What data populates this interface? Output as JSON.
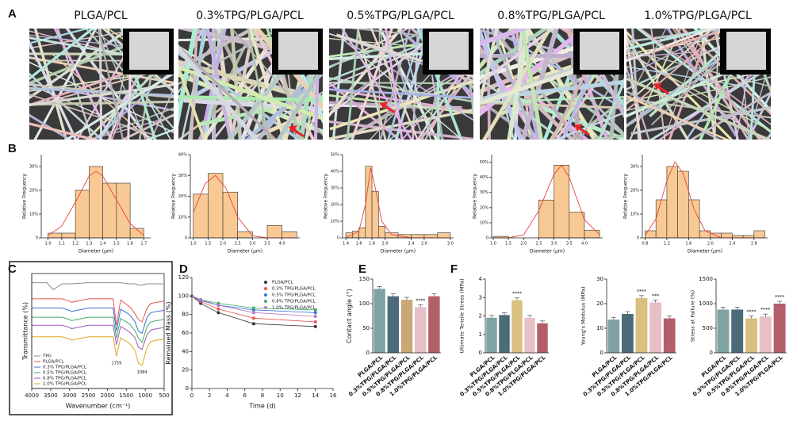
{
  "panel_labels": [
    "A",
    "B",
    "C",
    "D",
    "E",
    "F"
  ],
  "sem_titles": [
    "PLGA/PCL",
    "0.3%TPG/PLGA/PCL",
    "0.5%TPG/PLGA/PCL",
    "0.8%TPG/PLGA/PCL",
    "1.0%TPG/PLGA/PCL"
  ],
  "chart_data": [
    {
      "type": "histogram",
      "xlabel": "Diameter (μm)",
      "ylabel": "Relative Frequency",
      "color": "#f8c993",
      "bins": [
        1.0,
        1.1,
        1.2,
        1.3,
        1.4,
        1.5,
        1.6,
        1.7
      ],
      "counts": [
        2,
        2,
        20,
        30,
        23,
        23,
        4
      ],
      "xlim": [
        0.95,
        1.75
      ],
      "ylim": [
        0,
        35
      ],
      "xticks": [
        {
          "value": 1,
          "label": "1.0"
        },
        1.1,
        1.2,
        1.3,
        1.4,
        1.5,
        1.6,
        1.7
      ],
      "yticks": [
        0,
        {
          "value": 10,
          "label": "10%"
        },
        {
          "value": 20,
          "label": "20%"
        },
        {
          "value": 30,
          "label": "30%"
        }
      ],
      "fit": {
        "x": [
          1.0,
          1.1,
          1.2,
          1.3,
          1.35,
          1.4,
          1.5,
          1.6,
          1.7
        ],
        "values": [
          1,
          5,
          15,
          26,
          28,
          26,
          16,
          6,
          1
        ]
      }
    },
    {
      "type": "histogram",
      "xlabel": "Diameter (μm)",
      "ylabel": "Relative Frequency",
      "color": "#f8c993",
      "bins": [
        1.0,
        1.5,
        2.0,
        2.5,
        3.0,
        3.5,
        4.0,
        4.5
      ],
      "counts": [
        21,
        31,
        22,
        3,
        0,
        6,
        3
      ],
      "xlim": [
        0.9,
        4.6
      ],
      "ylim": [
        0,
        40
      ],
      "xticks": [
        {
          "value": 1,
          "label": "1.0"
        },
        1.5,
        {
          "value": 2,
          "label": "2.0"
        },
        2.5,
        {
          "value": 3,
          "label": "3.0"
        },
        3.5,
        {
          "value": 4,
          "label": "4.0"
        }
      ],
      "yticks": [
        0,
        {
          "value": 10,
          "label": "10%"
        },
        {
          "value": 20,
          "label": "20%"
        },
        {
          "value": 30,
          "label": "30%"
        },
        {
          "value": 40,
          "label": "40%"
        }
      ],
      "fit": {
        "x": [
          1.0,
          1.4,
          1.75,
          2.1,
          2.5,
          3.0,
          3.5,
          4.5
        ],
        "values": [
          12,
          26,
          30,
          24,
          10,
          1,
          0,
          0
        ]
      }
    },
    {
      "type": "histogram",
      "xlabel": "Diameter (μm)",
      "ylabel": "Relative Frequency",
      "color": "#f8c993",
      "bins": [
        1.4,
        1.5,
        1.6,
        1.7,
        1.8,
        1.9,
        2.0,
        2.2,
        2.4,
        2.6,
        2.8,
        3.0
      ],
      "counts": [
        3,
        4,
        6,
        43,
        28,
        7,
        3,
        2,
        2,
        2,
        3
      ],
      "xlim": [
        1.35,
        3.05
      ],
      "ylim": [
        0,
        50
      ],
      "xticks": [
        1.4,
        1.6,
        1.8,
        {
          "value": 2,
          "label": "2.0"
        },
        2.4,
        2.6,
        {
          "value": 3,
          "label": "3.0"
        }
      ],
      "yticks": [
        0,
        {
          "value": 10,
          "label": "10%"
        },
        {
          "value": 20,
          "label": "20%"
        },
        {
          "value": 30,
          "label": "30%"
        },
        {
          "value": 40,
          "label": "40%"
        },
        {
          "value": 50,
          "label": "50%"
        }
      ],
      "fit": {
        "x": [
          1.4,
          1.6,
          1.7,
          1.78,
          1.85,
          1.95,
          2.1,
          2.4,
          3.0
        ],
        "values": [
          0,
          4,
          20,
          42,
          30,
          10,
          2,
          0,
          0
        ]
      }
    },
    {
      "type": "histogram",
      "xlabel": "Diameter (μm)",
      "ylabel": "Relative Frequency",
      "color": "#f8c993",
      "bins": [
        1.0,
        1.5,
        2.0,
        2.5,
        3.0,
        3.5,
        4.0,
        4.5
      ],
      "counts": [
        1,
        0,
        0,
        25,
        48,
        17,
        5
      ],
      "xlim": [
        0.95,
        4.6
      ],
      "ylim": [
        0,
        55
      ],
      "xticks": [
        {
          "value": 1,
          "label": "1.0"
        },
        1.5,
        {
          "value": 2,
          "label": "2.0"
        },
        2.5,
        {
          "value": 3,
          "label": "3.0"
        },
        3.5,
        {
          "value": 4,
          "label": "4.0"
        }
      ],
      "yticks": [
        0,
        {
          "value": 10,
          "label": "10%"
        },
        {
          "value": 20,
          "label": "20%"
        },
        {
          "value": 30,
          "label": "30%"
        },
        {
          "value": 40,
          "label": "40%"
        },
        {
          "value": 50,
          "label": "50%"
        }
      ],
      "fit": {
        "x": [
          1.5,
          2.0,
          2.5,
          3.0,
          3.25,
          3.5,
          4.0,
          4.5
        ],
        "values": [
          0,
          2,
          18,
          42,
          48,
          40,
          12,
          2
        ]
      }
    },
    {
      "type": "histogram",
      "xlabel": "Diameter (μm)",
      "ylabel": "Relative Frequency",
      "color": "#f8c993",
      "bins": [
        0.8,
        1.0,
        1.2,
        1.4,
        1.6,
        1.8,
        2.0,
        2.2,
        2.4,
        2.6,
        2.8,
        3.0
      ],
      "counts": [
        3,
        16,
        30,
        28,
        16,
        3,
        2,
        2,
        1,
        1,
        3
      ],
      "xlim": [
        0.75,
        3.05
      ],
      "ylim": [
        0,
        35
      ],
      "xticks": [
        0.8,
        1.2,
        1.6,
        {
          "value": 2,
          "label": "2.0"
        },
        2.4,
        2.8
      ],
      "yticks": [
        0,
        {
          "value": 10,
          "label": "10%"
        },
        {
          "value": 20,
          "label": "20%"
        },
        {
          "value": 30,
          "label": "30%"
        }
      ],
      "fit": {
        "x": [
          0.8,
          1.0,
          1.2,
          1.35,
          1.5,
          1.7,
          1.9,
          2.2,
          3.0
        ],
        "values": [
          1,
          8,
          24,
          32,
          27,
          12,
          3,
          0,
          0
        ]
      }
    },
    {
      "type": "line",
      "xlabel": "Wavenumber (cm⁻¹)",
      "ylabel": "Transmittance (%)",
      "legend": "lower left",
      "markers": false,
      "x": [
        4000,
        3600,
        3433,
        3200,
        3000,
        2950,
        2500,
        2000,
        1850,
        1759,
        1650,
        1450,
        1380,
        1270,
        1182,
        1084,
        950,
        850,
        700,
        500
      ],
      "xlim": [
        4000,
        500
      ],
      "ylim": [
        0,
        100
      ],
      "xticks": [
        4000,
        3500,
        3000,
        2500,
        2000,
        1500,
        1000,
        500
      ],
      "annotations": [
        {
          "text": "1759",
          "x": 1759,
          "y": 22
        },
        {
          "text": "1084",
          "x": 1084,
          "y": 14
        }
      ],
      "series": [
        {
          "name": "TPG",
          "color": "#8c8c8c",
          "values": [
            92,
            92,
            86,
            91,
            91,
            91,
            92,
            92,
            92,
            92,
            92,
            91,
            91,
            91,
            90,
            90,
            91,
            91,
            91,
            91
          ]
        },
        {
          "name": "PLGA/PCL",
          "color": "#e8554e",
          "values": [
            78,
            78,
            78,
            78,
            76,
            75,
            78,
            78,
            78,
            55,
            77,
            72,
            70,
            65,
            60,
            58,
            70,
            74,
            75,
            76
          ]
        },
        {
          "name": "0.3% TPG/PLGA/PCL",
          "color": "#3d6fd6",
          "values": [
            70,
            70,
            70,
            70,
            68,
            67,
            70,
            70,
            70,
            50,
            69,
            65,
            63,
            58,
            50,
            48,
            62,
            66,
            67,
            68
          ]
        },
        {
          "name": "0.5% TPG/PLGA/PCL",
          "color": "#3fae67",
          "values": [
            62,
            62,
            62,
            62,
            60,
            59,
            62,
            62,
            62,
            44,
            61,
            57,
            55,
            50,
            44,
            40,
            54,
            58,
            59,
            60
          ]
        },
        {
          "name": "0.8% TPG/PLGA/PCL",
          "color": "#9b59b6",
          "values": [
            55,
            55,
            55,
            55,
            53,
            52,
            55,
            55,
            55,
            38,
            54,
            50,
            48,
            44,
            36,
            34,
            47,
            51,
            52,
            53
          ]
        },
        {
          "name": "1.0% TPG/PLGA/PCL",
          "color": "#e0a526",
          "values": [
            45,
            45,
            45,
            45,
            43,
            42,
            45,
            45,
            45,
            28,
            44,
            40,
            38,
            33,
            22,
            20,
            36,
            41,
            42,
            43
          ]
        }
      ]
    },
    {
      "type": "line",
      "xlabel": "Time (d)",
      "ylabel": "Remained Mass (%)",
      "legend": "upper right",
      "markers": true,
      "x": [
        0,
        1,
        3,
        7,
        14
      ],
      "xlim": [
        0,
        16
      ],
      "ylim": [
        0,
        120
      ],
      "xticks": [
        0,
        2,
        4,
        6,
        8,
        10,
        12,
        14,
        16
      ],
      "yticks": [
        0,
        20,
        40,
        60,
        80,
        100,
        120
      ],
      "series": [
        {
          "name": "PLGA/PCL",
          "color": "#333333",
          "values": [
            100,
            92,
            82,
            70,
            67
          ]
        },
        {
          "name": "0.3% TPG/PLGA/PCL",
          "color": "#e8554e",
          "values": [
            100,
            94,
            86,
            76,
            72
          ]
        },
        {
          "name": "0.5% TPG/PLGA/PCL",
          "color": "#3d6fd6",
          "values": [
            100,
            95,
            90,
            85,
            82
          ]
        },
        {
          "name": "0.8% TPG/PLGA/PCL",
          "color": "#3fae67",
          "values": [
            100,
            96,
            92,
            87,
            85
          ]
        },
        {
          "name": "1.0% TPG/PLGA/PCL",
          "color": "#b07cc6",
          "values": [
            100,
            96,
            90,
            82,
            78
          ]
        }
      ]
    },
    {
      "type": "bar",
      "ylabel": "Contact angle (°)",
      "categories": [
        "PLGA/PCL",
        "0.3%TPG/PLGA/PCL",
        "0.5%TPG/PLGA/PCL",
        "0.8%TPG/PLGA/PCL",
        "1.0%TPG/PLGA/PCL"
      ],
      "values": [
        130,
        115,
        108,
        93,
        115
      ],
      "colors": [
        "#7fa3a5",
        "#4c6b79",
        "#c8a874",
        "#e6c0c6",
        "#b25f6a"
      ],
      "significance": [
        null,
        null,
        null,
        "****",
        null
      ],
      "ylim": [
        0,
        150
      ],
      "yticks": [
        0,
        50,
        100,
        150
      ]
    },
    {
      "type": "bar",
      "ylabel": "Ultimate Tensile Stress (MPa)",
      "categories": [
        "PLGA/PCL",
        "0.3%TPG/PLGA/PCL",
        "0.5%TPG/PLGA/PCL",
        "0.8%TPG/PLGA/PCL",
        "1.0%TPG/PLGA/PCL"
      ],
      "values": [
        1.9,
        2.05,
        2.85,
        1.9,
        1.6
      ],
      "colors": [
        "#7fa3a5",
        "#4c6b79",
        "#d9bf80",
        "#e6c0c6",
        "#b25f6a"
      ],
      "significance": [
        null,
        null,
        "****",
        null,
        null
      ],
      "ylim": [
        0,
        4
      ],
      "yticks": [
        0,
        1,
        2,
        3,
        4
      ]
    },
    {
      "type": "bar",
      "ylabel": "Young's Modulus (MPa)",
      "categories": [
        "PLGA/PCL",
        "0.3%TPG/PLGA/PCL",
        "0.5%TPG/PLGA/PCL",
        "0.8%TPG/PLGA/PCL",
        "1.0%TPG/PLGA/PCL"
      ],
      "values": [
        13.5,
        15.8,
        22.3,
        20.5,
        14
      ],
      "colors": [
        "#7fa3a5",
        "#4c6b79",
        "#d9bf80",
        "#e6c0c6",
        "#b25f6a"
      ],
      "significance": [
        null,
        null,
        "****",
        "***",
        null
      ],
      "ylim": [
        0,
        30
      ],
      "yticks": [
        0,
        10,
        20,
        30
      ]
    },
    {
      "type": "bar",
      "ylabel": "Stress at Failure (%)",
      "categories": [
        "PLGA/PCL",
        "0.3%TPG/PLGA/PCL",
        "0.5%TPG/PLGA/PCL",
        "0.8%TPG/PLGA/PCL",
        "1.0%TPG/PLGA/PCL"
      ],
      "values": [
        880,
        880,
        700,
        740,
        1000
      ],
      "colors": [
        "#7fa3a5",
        "#4c6b79",
        "#d9bf80",
        "#e6c0c6",
        "#b25f6a"
      ],
      "significance": [
        null,
        null,
        "****",
        "****",
        "****"
      ],
      "ylim": [
        0,
        1500
      ],
      "yticks": [
        0,
        500,
        1000,
        1500
      ]
    }
  ]
}
